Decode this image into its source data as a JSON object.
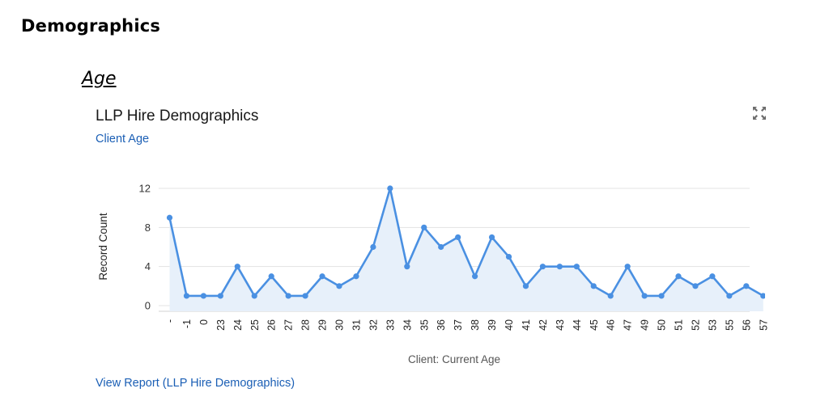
{
  "page": {
    "section_heading": "Demographics",
    "subsection_heading": "Age"
  },
  "chart_header": {
    "title": "LLP Hire Demographics",
    "subtitle": "Client Age",
    "expand_icon": "expand-icon"
  },
  "footer": {
    "report_link": "View Report (LLP Hire Demographics)"
  },
  "colors": {
    "line": "#4a90e2",
    "fill": "#e7f0fa",
    "grid": "#e3e3e3",
    "link": "#1b5fb5"
  },
  "chart_data": {
    "type": "line",
    "title": "LLP Hire Demographics",
    "subtitle": "Client Age",
    "xlabel": "Client: Current Age",
    "ylabel": "Record Count",
    "ylim": [
      0,
      12
    ],
    "yticks": [
      0,
      4,
      8,
      12
    ],
    "grid": true,
    "area_fill": true,
    "categories": [
      "-",
      "-1",
      "0",
      "23",
      "24",
      "25",
      "26",
      "27",
      "28",
      "29",
      "30",
      "31",
      "32",
      "33",
      "34",
      "35",
      "36",
      "37",
      "38",
      "39",
      "40",
      "41",
      "42",
      "43",
      "44",
      "45",
      "46",
      "47",
      "49",
      "50",
      "51",
      "52",
      "53",
      "55",
      "56",
      "57"
    ],
    "series": [
      {
        "values": [
          9,
          1,
          1,
          1,
          4,
          1,
          3,
          1,
          1,
          3,
          2,
          3,
          6,
          12,
          4,
          8,
          6,
          7,
          3,
          7,
          5,
          2,
          4,
          4,
          4,
          2,
          1,
          4,
          1,
          1,
          3,
          2,
          3,
          1,
          2,
          1
        ]
      }
    ]
  }
}
